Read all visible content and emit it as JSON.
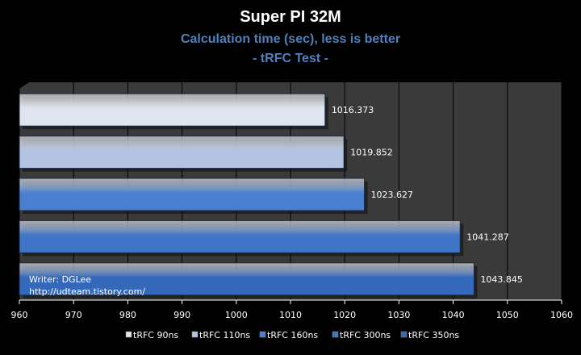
{
  "chart_data": {
    "type": "bar",
    "orientation": "horizontal",
    "title": "Super PI 32M",
    "subtitle": "Calculation time (sec), less is better",
    "subtitle2": "- tRFC Test -",
    "categories": [
      "tRFC 90ns",
      "tRFC 110ns",
      "tRFC 160ns",
      "tRFC 300ns",
      "tRFC 350ns"
    ],
    "values": [
      1016.373,
      1019.852,
      1023.627,
      1041.287,
      1043.845
    ],
    "value_labels": [
      "1016.373",
      "1019.852",
      "1023.627",
      "1041.287",
      "1043.845"
    ],
    "xlim": [
      960,
      1060
    ],
    "xticks": [
      "960",
      "970",
      "980",
      "990",
      "1000",
      "1010",
      "1020",
      "1030",
      "1040",
      "1050",
      "1060"
    ],
    "grid": true,
    "legend_position": "bottom",
    "bar_colors": [
      "#dfe5f0",
      "#b3c4e2",
      "#4a7fcf",
      "#3f74c6",
      "#3468ba"
    ],
    "plot_bg": "#3a3a3a",
    "annotations": [
      "Writer: DGLee",
      "http://udteam.tistory.com/"
    ]
  }
}
